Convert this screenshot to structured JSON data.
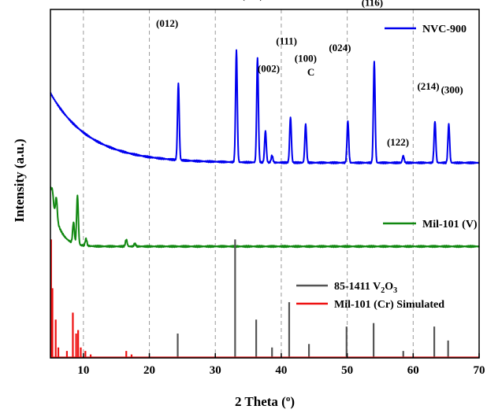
{
  "chart_data": {
    "type": "line",
    "xlabel": "2 Theta (",
    "xlabel_sup": "o",
    "xlabel_end": ")",
    "ylabel": "Intensity (a.u.)",
    "xlim": [
      5,
      70
    ],
    "ylim": [
      0,
      100
    ],
    "x_ticks": [
      10,
      20,
      30,
      40,
      50,
      60,
      70
    ],
    "grid": "vertical-dashed",
    "colors": {
      "nvc": "#0000ee",
      "mil_v": "#118811",
      "v2o3": "#555555",
      "mil_cr": "#ee1111"
    },
    "series": [
      {
        "name": "NVC-900",
        "color": "#0000ee",
        "baseline": {
          "start": 76,
          "end": 56,
          "decay": 6
        },
        "peaks": [
          {
            "x": 24.4,
            "h": 22
          },
          {
            "x": 33.2,
            "h": 32
          },
          {
            "x": 36.4,
            "h": 30
          },
          {
            "x": 37.6,
            "h": 9
          },
          {
            "x": 38.6,
            "h": 2
          },
          {
            "x": 41.4,
            "h": 13
          },
          {
            "x": 43.7,
            "h": 11
          },
          {
            "x": 50.1,
            "h": 12
          },
          {
            "x": 54.1,
            "h": 29
          },
          {
            "x": 58.5,
            "h": 2
          },
          {
            "x": 63.3,
            "h": 12
          },
          {
            "x": 65.4,
            "h": 11
          }
        ]
      },
      {
        "name": "Mil-101 (V)",
        "color": "#118811",
        "baseline": {
          "start": 49,
          "end": 32,
          "decay": 1.2
        },
        "peaks": [
          {
            "x": 5.3,
            "h": 3
          },
          {
            "x": 5.9,
            "h": 6
          },
          {
            "x": 8.5,
            "h": 6
          },
          {
            "x": 9.1,
            "h": 14
          },
          {
            "x": 10.4,
            "h": 2
          },
          {
            "x": 16.5,
            "h": 2
          },
          {
            "x": 17.8,
            "h": 0.8
          }
        ]
      },
      {
        "name": "85-1411 V2O3",
        "name_main": "85-1411 V",
        "name_sub": "2",
        "name_tail": "O",
        "name_sub2": "3",
        "color": "#555555",
        "type": "sticks",
        "sticks": [
          {
            "x": 24.3,
            "h": 7
          },
          {
            "x": 33.0,
            "h": 34
          },
          {
            "x": 36.2,
            "h": 11
          },
          {
            "x": 38.6,
            "h": 3
          },
          {
            "x": 41.2,
            "h": 16
          },
          {
            "x": 44.2,
            "h": 4
          },
          {
            "x": 49.9,
            "h": 9
          },
          {
            "x": 54.0,
            "h": 10
          },
          {
            "x": 58.5,
            "h": 2
          },
          {
            "x": 63.2,
            "h": 9
          },
          {
            "x": 65.3,
            "h": 5
          }
        ]
      },
      {
        "name": "Mil-101 (Cr) Simulated",
        "color": "#ee1111",
        "type": "sticks",
        "sticks": [
          {
            "x": 5.1,
            "h": 34
          },
          {
            "x": 5.3,
            "h": 20
          },
          {
            "x": 5.8,
            "h": 11
          },
          {
            "x": 6.2,
            "h": 3
          },
          {
            "x": 7.5,
            "h": 2
          },
          {
            "x": 8.4,
            "h": 13
          },
          {
            "x": 8.9,
            "h": 7
          },
          {
            "x": 9.2,
            "h": 8
          },
          {
            "x": 9.6,
            "h": 3
          },
          {
            "x": 10.3,
            "h": 2
          },
          {
            "x": 11.1,
            "h": 1
          },
          {
            "x": 16.5,
            "h": 2
          },
          {
            "x": 17.3,
            "h": 1
          }
        ]
      }
    ],
    "annotations": [
      {
        "text": "(012)",
        "x": 22.7,
        "y": 95
      },
      {
        "text": "(104)",
        "x": 31.6,
        "y": 108
      },
      {
        "text": "(110)",
        "x": 35.6,
        "y": 103
      },
      {
        "text": "(002)",
        "x": 38.1,
        "y": 82
      },
      {
        "text": "(111)",
        "x": 40.8,
        "y": 90
      },
      {
        "text": "(100)",
        "x": 43.7,
        "y": 85
      },
      {
        "text": "C",
        "x": 44.5,
        "y": 81
      },
      {
        "text": "(024)",
        "x": 48.9,
        "y": 88
      },
      {
        "text": "(116)",
        "x": 53.8,
        "y": 101
      },
      {
        "text": "(122)",
        "x": 57.7,
        "y": 61
      },
      {
        "text": "(214)",
        "x": 62.3,
        "y": 77
      },
      {
        "text": "(300)",
        "x": 65.9,
        "y": 76
      }
    ],
    "legend": {
      "placement": "right",
      "items": [
        {
          "series": 0,
          "label": "NVC-900"
        },
        {
          "series": 1,
          "label": "Mil-101 (V)"
        },
        {
          "series": 2,
          "label": "85-1411 V2O3"
        },
        {
          "series": 3,
          "label": "Mil-101 (Cr) Simulated"
        }
      ]
    }
  }
}
